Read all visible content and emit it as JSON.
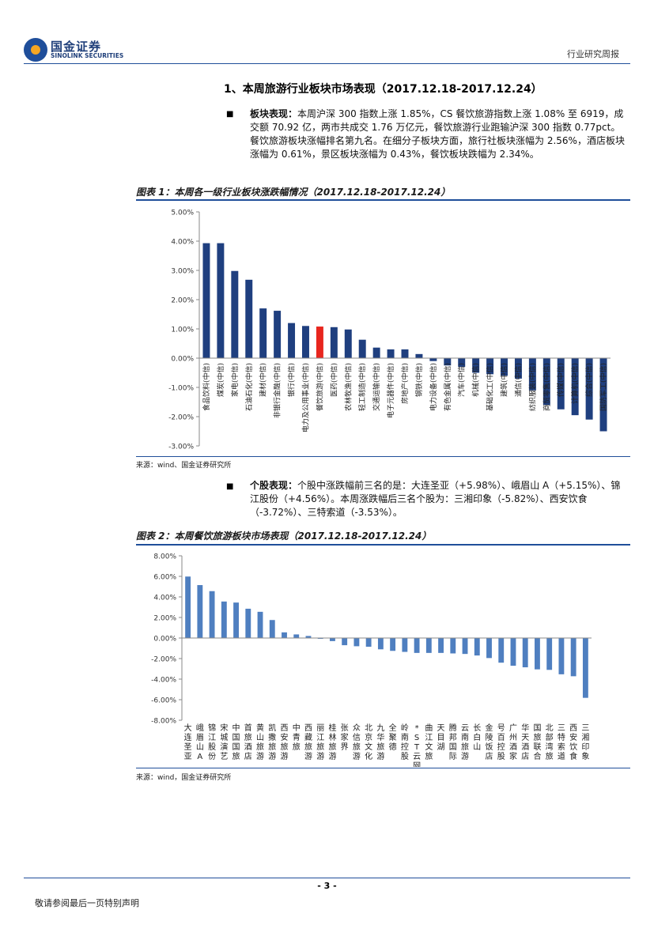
{
  "header": {
    "logo_cn": "国金证券",
    "logo_en": "SINOLINK SECURITIES",
    "report_type": "行业研究周报"
  },
  "section": {
    "title": "1、本周旅游行业板块市场表现（2017.12.18-2017.12.24）"
  },
  "para1": {
    "bullet": "■",
    "label": "板块表现：",
    "text": "本周沪深 300 指数上涨 1.85%，CS 餐饮旅游指数上涨 1.08% 至 6919，成交额 70.92 亿，两市共成交 1.76 万亿元，餐饮旅游行业跑输沪深 300 指数 0.77pct。餐饮旅游板块涨幅排名第九名。在细分子板块方面，旅行社板块涨幅为 2.56%，酒店板块涨幅为 0.61%，景区板块涨幅为 0.43%，餐饮板块跌幅为 2.34%。"
  },
  "fig1": {
    "title": "图表 1：本周各一级行业板块涨跌幅情况（2017.12.18-2017.12.24）",
    "source": "来源：wind、国金证券研究所"
  },
  "para2": {
    "bullet": "■",
    "label": "个股表现：",
    "text": "个股中涨跌幅前三名的是：大连圣亚（+5.98%）、峨眉山 A（+5.15%）、锦江股份（+4.56%）。本周涨跌幅后三名个股为：三湘印象（-5.82%）、西安饮食（-3.72%）、三特索道（-3.53%）。"
  },
  "fig2": {
    "title": "图表 2：本周餐饮旅游板块市场表现（2017.12.18-2017.12.24）",
    "source": "来源：wind，国金证券研究所"
  },
  "footer": {
    "page": "- 3 -",
    "disclaimer": "敬请参阅最后一页特别声明"
  },
  "chart_data": [
    {
      "type": "bar",
      "ylim": [
        -3,
        5
      ],
      "yticks": [
        "5.00%",
        "4.00%",
        "3.00%",
        "2.00%",
        "1.00%",
        "0.00%",
        "-1.00%",
        "-2.00%",
        "-3.00%"
      ],
      "bar_color": "#1f3f7f",
      "highlight_color": "#e8261e",
      "highlight_index": 9,
      "categories": [
        "食品饮料(中信)",
        "煤炭(中信)",
        "家电(中信)",
        "石油石化(中信)",
        "建材(中信)",
        "非银行金融(中信)",
        "银行(中信)",
        "电力及公用事业(中信)",
        "餐饮旅游(中信)",
        "医药(中信)",
        "农林牧渔(中信)",
        "轻工制造(中信)",
        "交通运输(中信)",
        "电子元器件(中信)",
        "房地产(中信)",
        "钢铁(中信)",
        "电力设备(中信)",
        "有色金属(中信)",
        "汽车(中信)",
        "机械(中信)",
        "基础化工(中信)",
        "建筑(中信)",
        "通信(中信)",
        "纺织服装(中信)",
        "商贸零售(中信)",
        "传媒(中信)",
        "计算机(中信)",
        "综合(中信)",
        "国防军工(中信)"
      ],
      "values": [
        3.93,
        3.93,
        2.98,
        2.68,
        1.7,
        1.62,
        1.2,
        1.1,
        1.08,
        1.06,
        0.98,
        0.63,
        0.36,
        0.3,
        0.3,
        0.14,
        -0.1,
        -0.25,
        -0.3,
        -0.5,
        -0.55,
        -0.6,
        -0.7,
        -1.1,
        -1.6,
        -1.75,
        -1.95,
        -2.1,
        -2.5
      ]
    },
    {
      "type": "bar",
      "ylim": [
        -8,
        8
      ],
      "yticks": [
        "8.00%",
        "6.00%",
        "4.00%",
        "2.00%",
        "0.00%",
        "-2.00%",
        "-4.00%",
        "-6.00%",
        "-8.00%"
      ],
      "bar_color": "#4f7fc0",
      "categories": [
        "大连圣亚",
        "峨眉山A",
        "锦江股份",
        "宋城演艺",
        "中国国旅",
        "首旅酒店",
        "黄山旅游",
        "凯撒旅游",
        "西安旅游",
        "中青旅",
        "西藏旅游",
        "丽江旅游",
        "桂林旅游",
        "张家界",
        "众信旅游",
        "北京文化",
        "九华旅游",
        "全聚德",
        "岭南控股",
        "*ST云网",
        "曲江文旅",
        "天目湖",
        "腾邦国际",
        "云南旅游",
        "长白山",
        "金陵饭店",
        "号百控股",
        "广州酒家",
        "华天酒店",
        "国旅联合",
        "北部湾旅",
        "三特索道",
        "西安饮食",
        "三湘印象"
      ],
      "values": [
        5.98,
        5.15,
        4.56,
        3.55,
        3.45,
        2.85,
        2.55,
        1.75,
        0.55,
        0.35,
        0.2,
        -0.05,
        -0.3,
        -0.7,
        -0.8,
        -0.85,
        -1.1,
        -1.25,
        -1.35,
        -1.45,
        -1.45,
        -1.45,
        -1.5,
        -1.55,
        -1.7,
        -1.95,
        -2.4,
        -2.7,
        -2.85,
        -3.05,
        -3.1,
        -3.53,
        -3.72,
        -5.82
      ]
    }
  ]
}
